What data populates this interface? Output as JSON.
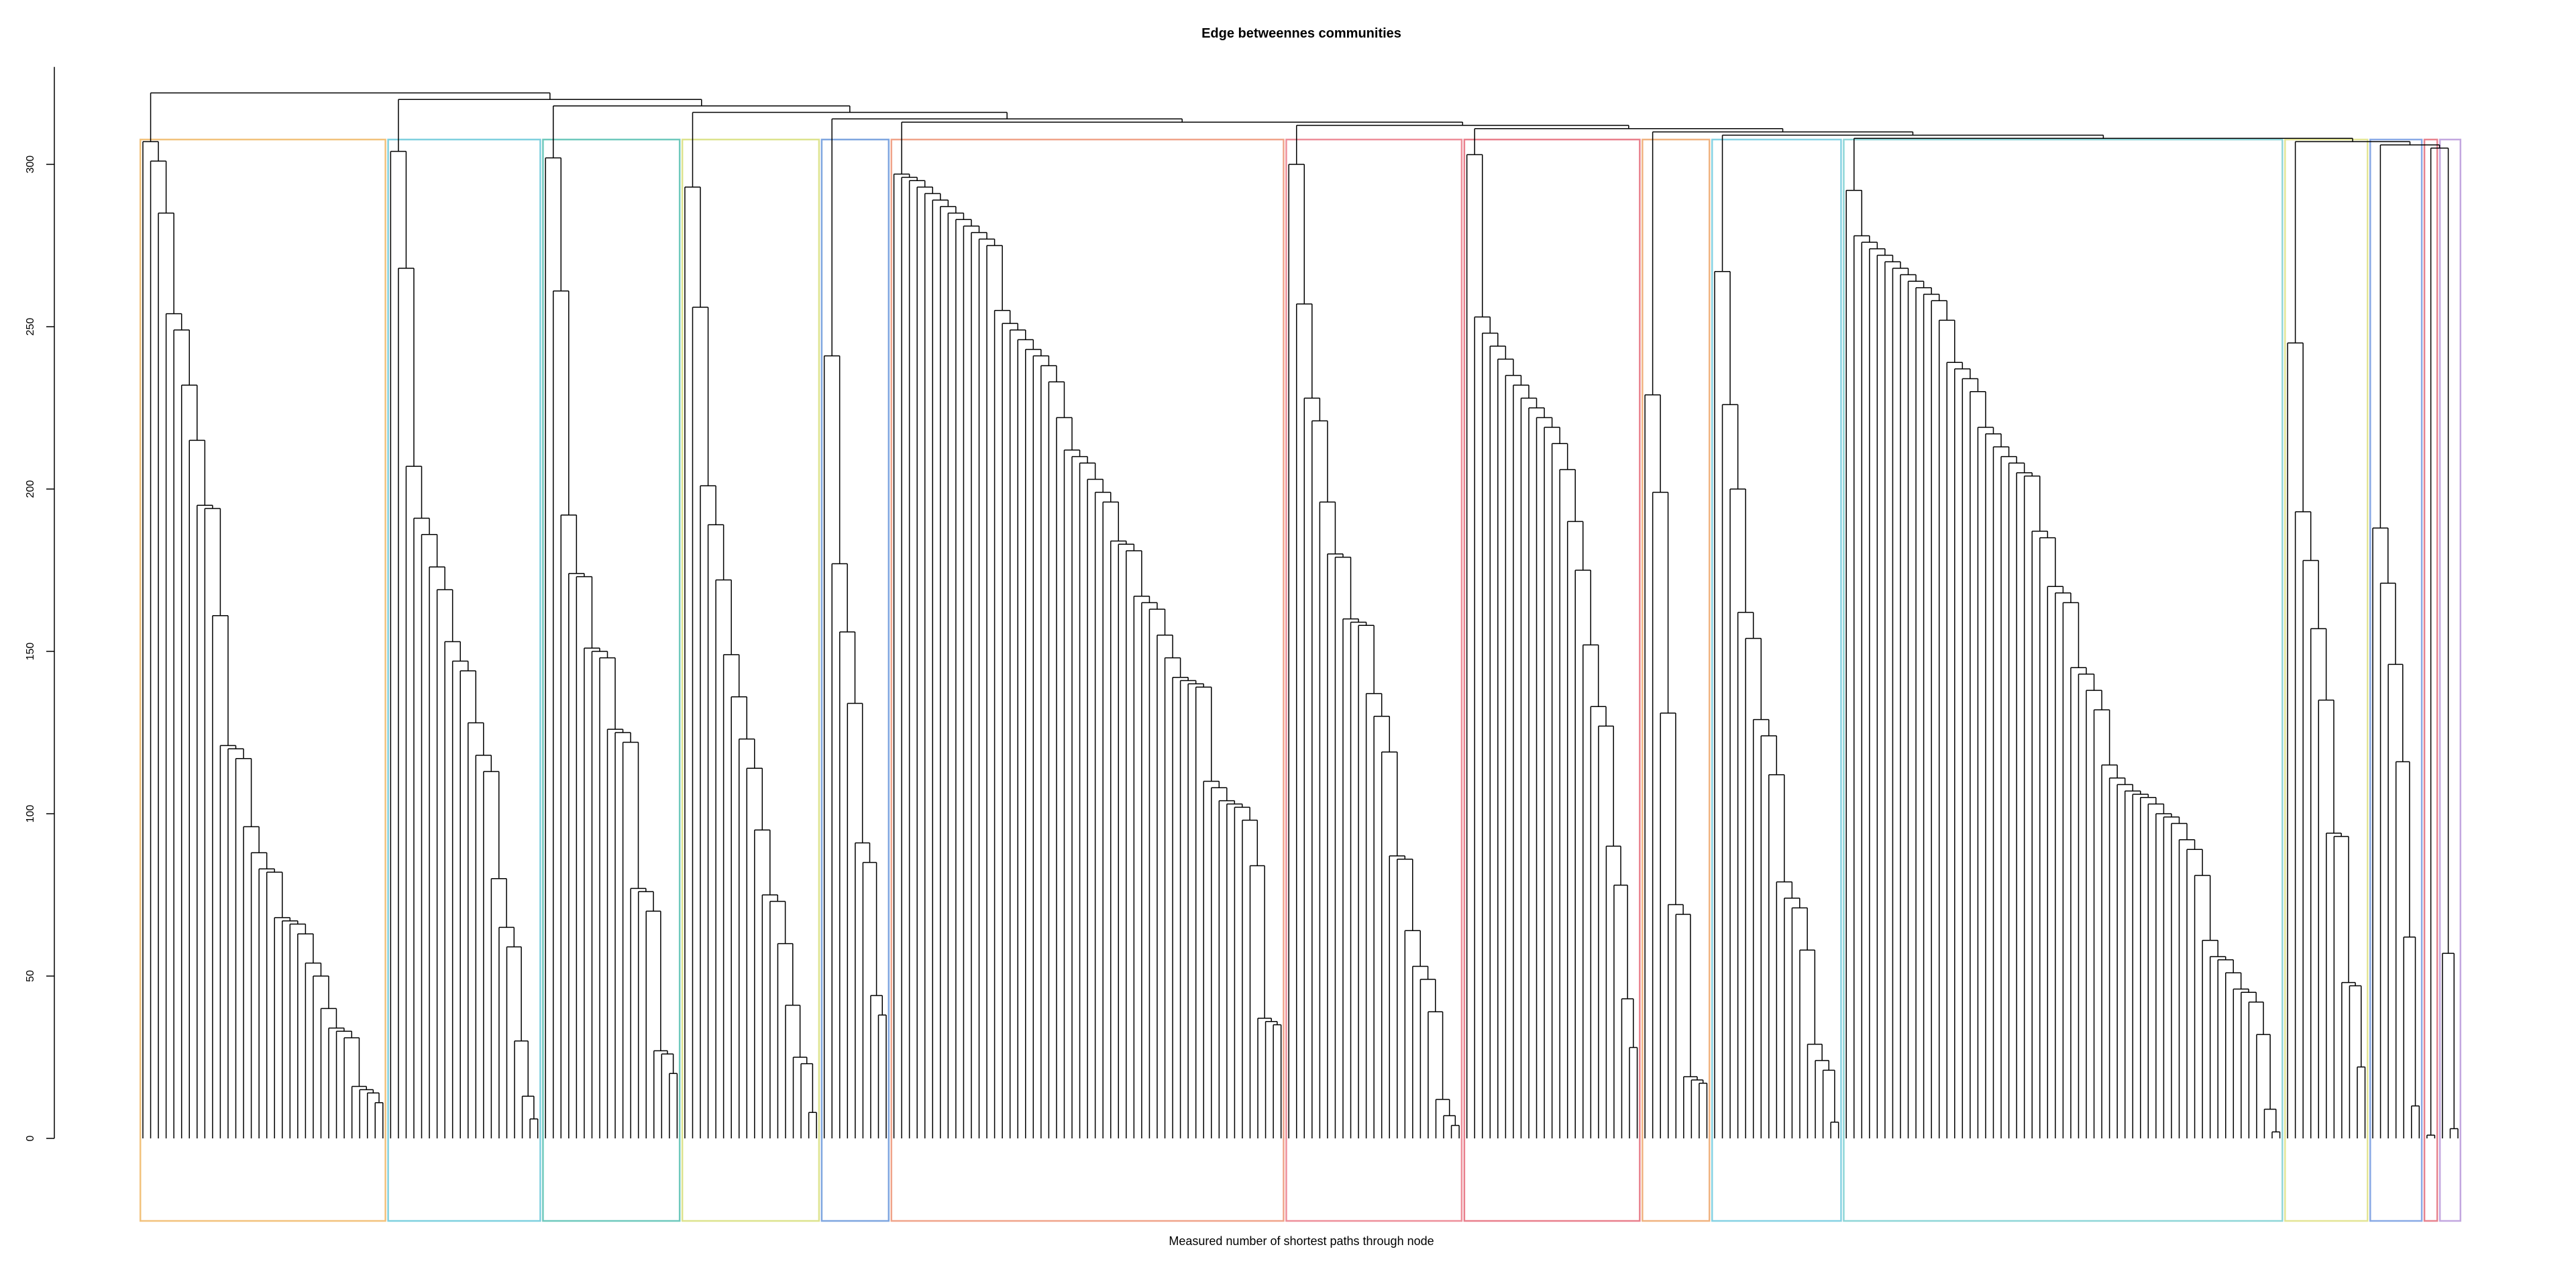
{
  "chart_data": {
    "type": "dendrogram",
    "title": "Edge betweennes communities",
    "xlabel": "Measured number of shortest paths through node",
    "ylim": [
      0,
      330
    ],
    "yticks": [
      0,
      50,
      100,
      150,
      200,
      250,
      300
    ],
    "line_color": "#000000",
    "top_merges": [
      322,
      320,
      318,
      316,
      314,
      313,
      312,
      311,
      310,
      309,
      308,
      307,
      306,
      305
    ],
    "communities": [
      {
        "color": "#f2c27c",
        "merges": [
          307,
          301,
          285,
          254,
          249,
          232,
          215,
          195,
          194,
          161,
          121,
          120,
          117,
          96,
          88,
          83,
          82,
          68,
          67,
          66,
          63,
          54,
          50,
          40,
          34,
          33,
          31,
          16,
          15,
          14,
          11
        ]
      },
      {
        "color": "#7fd0df",
        "merges": [
          304,
          268,
          207,
          191,
          186,
          176,
          169,
          153,
          147,
          144,
          128,
          118,
          113,
          80,
          65,
          59,
          30,
          13,
          6
        ]
      },
      {
        "color": "#6fc9bd",
        "merges": [
          302,
          261,
          192,
          174,
          173,
          151,
          150,
          148,
          126,
          125,
          122,
          77,
          76,
          70,
          27,
          26,
          20
        ]
      },
      {
        "color": "#dde38e",
        "merges": [
          293,
          256,
          201,
          189,
          172,
          149,
          136,
          123,
          114,
          95,
          75,
          73,
          60,
          41,
          25,
          23,
          8
        ]
      },
      {
        "color": "#7fa6e0",
        "merges": [
          241,
          177,
          156,
          134,
          91,
          85,
          44,
          38
        ]
      },
      {
        "color": "#f0a48a",
        "merges": [
          297,
          296,
          295,
          293,
          291,
          289,
          287,
          285,
          283,
          281,
          279,
          277,
          275,
          255,
          251,
          249,
          246,
          243,
          241,
          238,
          233,
          222,
          212,
          210,
          208,
          203,
          199,
          196,
          184,
          183,
          181,
          167,
          165,
          163,
          155,
          148,
          142,
          141,
          140,
          139,
          110,
          108,
          104,
          103,
          102,
          98,
          84,
          37,
          36,
          35
        ]
      },
      {
        "color": "#ee8f9a",
        "merges": [
          300,
          257,
          228,
          221,
          196,
          180,
          179,
          160,
          159,
          158,
          137,
          130,
          119,
          87,
          86,
          64,
          53,
          49,
          39,
          12,
          7,
          4
        ]
      },
      {
        "color": "#e9808d",
        "merges": [
          303,
          253,
          248,
          244,
          240,
          235,
          232,
          228,
          225,
          222,
          219,
          214,
          206,
          190,
          175,
          152,
          133,
          127,
          90,
          78,
          43,
          28
        ]
      },
      {
        "color": "#f0b380",
        "merges": [
          229,
          199,
          131,
          72,
          69,
          19,
          18,
          17
        ]
      },
      {
        "color": "#86d2e3",
        "merges": [
          267,
          226,
          200,
          162,
          154,
          129,
          124,
          112,
          79,
          74,
          71,
          58,
          29,
          24,
          21,
          5
        ]
      },
      {
        "color": "#8fd6d8",
        "merges": [
          292,
          278,
          276,
          274,
          272,
          270,
          268,
          266,
          264,
          262,
          260,
          258,
          252,
          239,
          237,
          234,
          230,
          219,
          217,
          213,
          210,
          208,
          205,
          204,
          187,
          185,
          170,
          168,
          165,
          145,
          143,
          138,
          132,
          115,
          111,
          109,
          107,
          106,
          105,
          103,
          100,
          99,
          97,
          92,
          89,
          81,
          61,
          56,
          55,
          51,
          46,
          45,
          42,
          32,
          9,
          2
        ]
      },
      {
        "color": "#e3e596",
        "merges": [
          245,
          193,
          178,
          157,
          135,
          94,
          93,
          48,
          47,
          22
        ]
      },
      {
        "color": "#89a9e6",
        "merges": [
          188,
          171,
          146,
          116,
          62,
          10
        ]
      },
      {
        "color": "#e7838f",
        "merges": [
          1
        ]
      },
      {
        "color": "#c3a7e0",
        "merges": [
          57,
          3
        ]
      }
    ]
  }
}
